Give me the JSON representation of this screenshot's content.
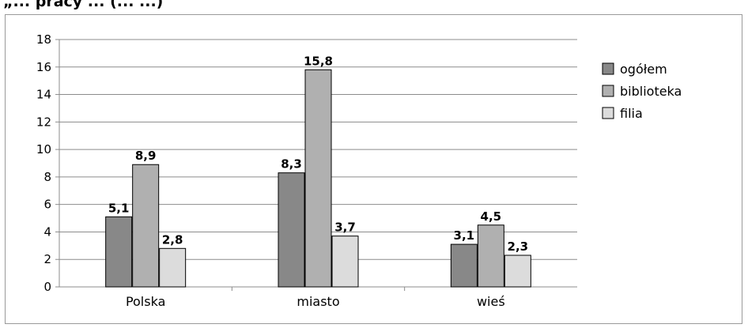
{
  "header": {
    "partial_title": "„... pracy ... (... ...)"
  },
  "chart_data": {
    "type": "bar",
    "categories": [
      "Polska",
      "miasto",
      "wieś"
    ],
    "series": [
      {
        "name": "ogółem",
        "values": [
          5.1,
          8.3,
          3.1
        ],
        "labels": [
          "5,1",
          "8,3",
          "3,1"
        ],
        "color": "#888888"
      },
      {
        "name": "biblioteka",
        "values": [
          8.9,
          15.8,
          4.5
        ],
        "labels": [
          "8,9",
          "15,8",
          "4,5"
        ],
        "color": "#b0b0b0"
      },
      {
        "name": "filia",
        "values": [
          2.8,
          3.7,
          2.3
        ],
        "labels": [
          "2,8",
          "3,7",
          "2,3"
        ],
        "color": "#dcdcdc"
      }
    ],
    "yticks": [
      0,
      2,
      4,
      6,
      8,
      10,
      12,
      14,
      16,
      18
    ],
    "ylim": [
      0,
      18
    ],
    "grid": true,
    "legend": "right",
    "title": "",
    "xlabel": "",
    "ylabel": ""
  }
}
